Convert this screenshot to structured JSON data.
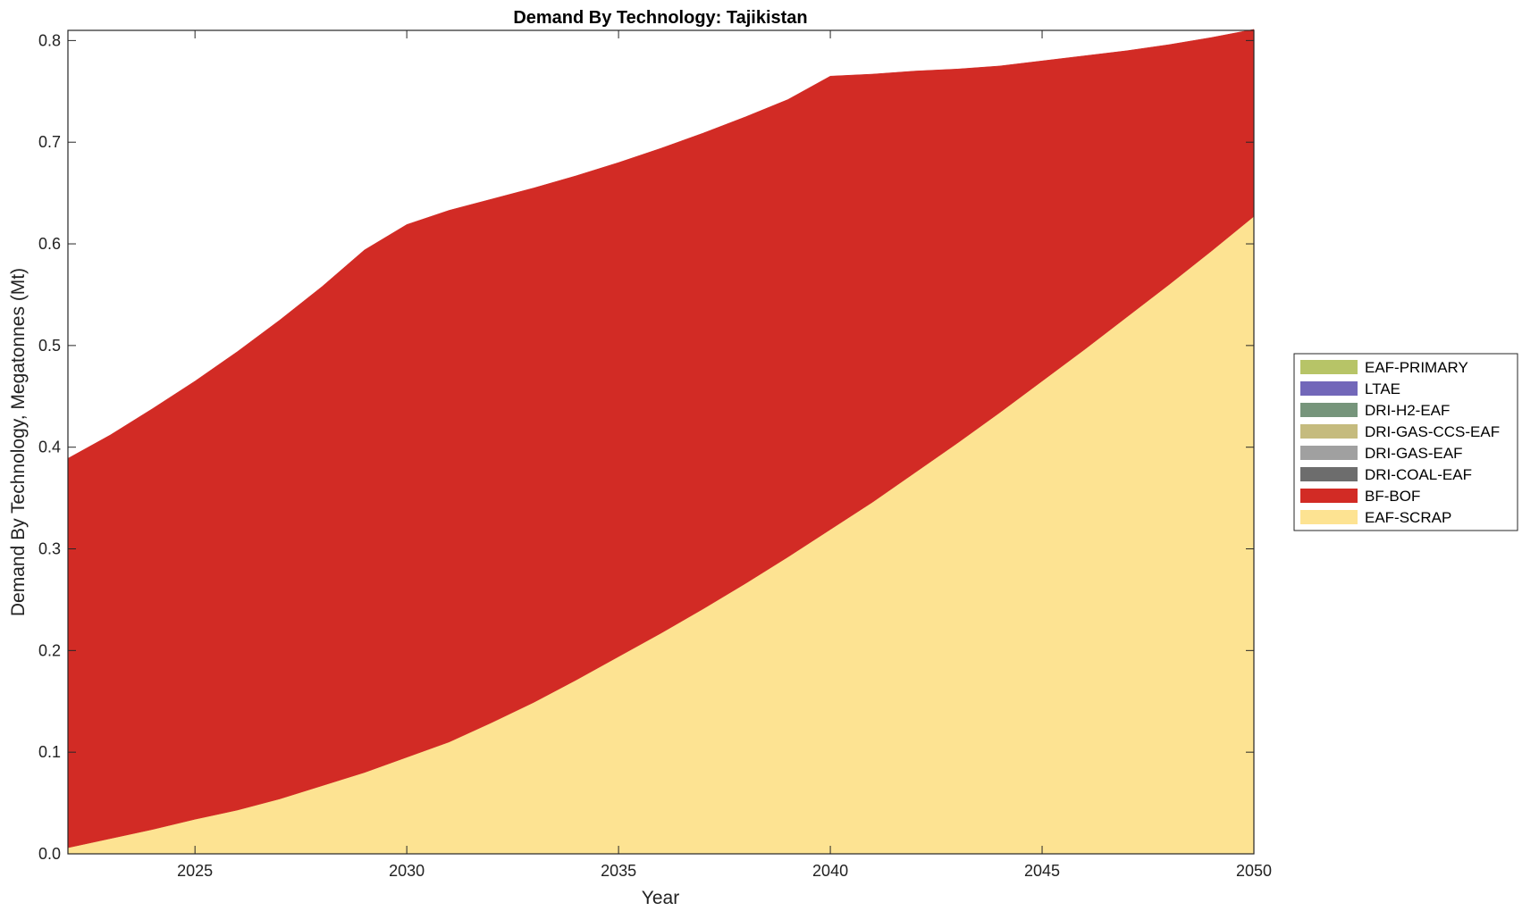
{
  "chart_data": {
    "type": "area",
    "stacked": true,
    "title": "Demand By Technology: Tajikistan",
    "xlabel": "Year",
    "ylabel": "Demand By Technology, Megatonnes (Mt)",
    "xlim": [
      2022,
      2050
    ],
    "ylim": [
      0.0,
      0.81
    ],
    "x_ticks": [
      2025,
      2030,
      2035,
      2040,
      2045,
      2050
    ],
    "x_tick_labels": [
      "2025",
      "2030",
      "2035",
      "2040",
      "2045",
      "2050"
    ],
    "y_ticks": [
      0.0,
      0.1,
      0.2,
      0.3,
      0.4,
      0.5,
      0.6,
      0.7,
      0.8
    ],
    "y_tick_labels": [
      "0.0",
      "0.1",
      "0.2",
      "0.3",
      "0.4",
      "0.5",
      "0.6",
      "0.7",
      "0.8"
    ],
    "grid": false,
    "legend_position": "right",
    "x": [
      2022,
      2023,
      2024,
      2025,
      2026,
      2027,
      2028,
      2029,
      2030,
      2031,
      2032,
      2033,
      2034,
      2035,
      2036,
      2037,
      2038,
      2039,
      2040,
      2041,
      2042,
      2043,
      2044,
      2045,
      2046,
      2047,
      2048,
      2049,
      2050
    ],
    "series": [
      {
        "name": "EAF-SCRAP",
        "color": "#fde392",
        "values": [
          0.006,
          0.015,
          0.024,
          0.034,
          0.043,
          0.054,
          0.067,
          0.08,
          0.095,
          0.11,
          0.129,
          0.149,
          0.171,
          0.194,
          0.217,
          0.241,
          0.266,
          0.292,
          0.319,
          0.346,
          0.375,
          0.404,
          0.434,
          0.465,
          0.496,
          0.528,
          0.56,
          0.593,
          0.627
        ]
      },
      {
        "name": "BF-BOF",
        "color": "#d22b25",
        "values": [
          0.383,
          0.397,
          0.414,
          0.431,
          0.451,
          0.471,
          0.491,
          0.514,
          0.524,
          0.523,
          0.515,
          0.506,
          0.496,
          0.486,
          0.477,
          0.468,
          0.459,
          0.45,
          0.446,
          0.421,
          0.395,
          0.368,
          0.341,
          0.315,
          0.289,
          0.262,
          0.236,
          0.21,
          0.184
        ]
      },
      {
        "name": "DRI-COAL-EAF",
        "color": "#6d6d6d",
        "values": [
          0,
          0,
          0,
          0,
          0,
          0,
          0,
          0,
          0,
          0,
          0,
          0,
          0,
          0,
          0,
          0,
          0,
          0,
          0,
          0,
          0,
          0,
          0,
          0,
          0,
          0,
          0,
          0,
          0
        ]
      },
      {
        "name": "DRI-GAS-EAF",
        "color": "#a0a0a0",
        "values": [
          0,
          0,
          0,
          0,
          0,
          0,
          0,
          0,
          0,
          0,
          0,
          0,
          0,
          0,
          0,
          0,
          0,
          0,
          0,
          0,
          0,
          0,
          0,
          0,
          0,
          0,
          0,
          0,
          0
        ]
      },
      {
        "name": "DRI-GAS-CCS-EAF",
        "color": "#c5bb7e",
        "values": [
          0,
          0,
          0,
          0,
          0,
          0,
          0,
          0,
          0,
          0,
          0,
          0,
          0,
          0,
          0,
          0,
          0,
          0,
          0,
          0,
          0,
          0,
          0,
          0,
          0,
          0,
          0,
          0,
          0
        ]
      },
      {
        "name": "DRI-H2-EAF",
        "color": "#76957b",
        "values": [
          0,
          0,
          0,
          0,
          0,
          0,
          0,
          0,
          0,
          0,
          0,
          0,
          0,
          0,
          0,
          0,
          0,
          0,
          0,
          0,
          0,
          0,
          0,
          0,
          0,
          0,
          0,
          0,
          0
        ]
      },
      {
        "name": "LTAE",
        "color": "#7267b9",
        "values": [
          0,
          0,
          0,
          0,
          0,
          0,
          0,
          0,
          0,
          0,
          0,
          0,
          0,
          0,
          0,
          0,
          0,
          0,
          0,
          0,
          0,
          0,
          0,
          0,
          0,
          0,
          0,
          0,
          0
        ]
      },
      {
        "name": "EAF-PRIMARY",
        "color": "#b7c467",
        "values": [
          0,
          0,
          0,
          0,
          0,
          0,
          0,
          0,
          0,
          0,
          0,
          0,
          0,
          0,
          0,
          0,
          0,
          0,
          0,
          0,
          0,
          0,
          0,
          0,
          0,
          0,
          0,
          0,
          0
        ]
      }
    ],
    "legend_order": [
      "EAF-PRIMARY",
      "LTAE",
      "DRI-H2-EAF",
      "DRI-GAS-CCS-EAF",
      "DRI-GAS-EAF",
      "DRI-COAL-EAF",
      "BF-BOF",
      "EAF-SCRAP"
    ]
  }
}
